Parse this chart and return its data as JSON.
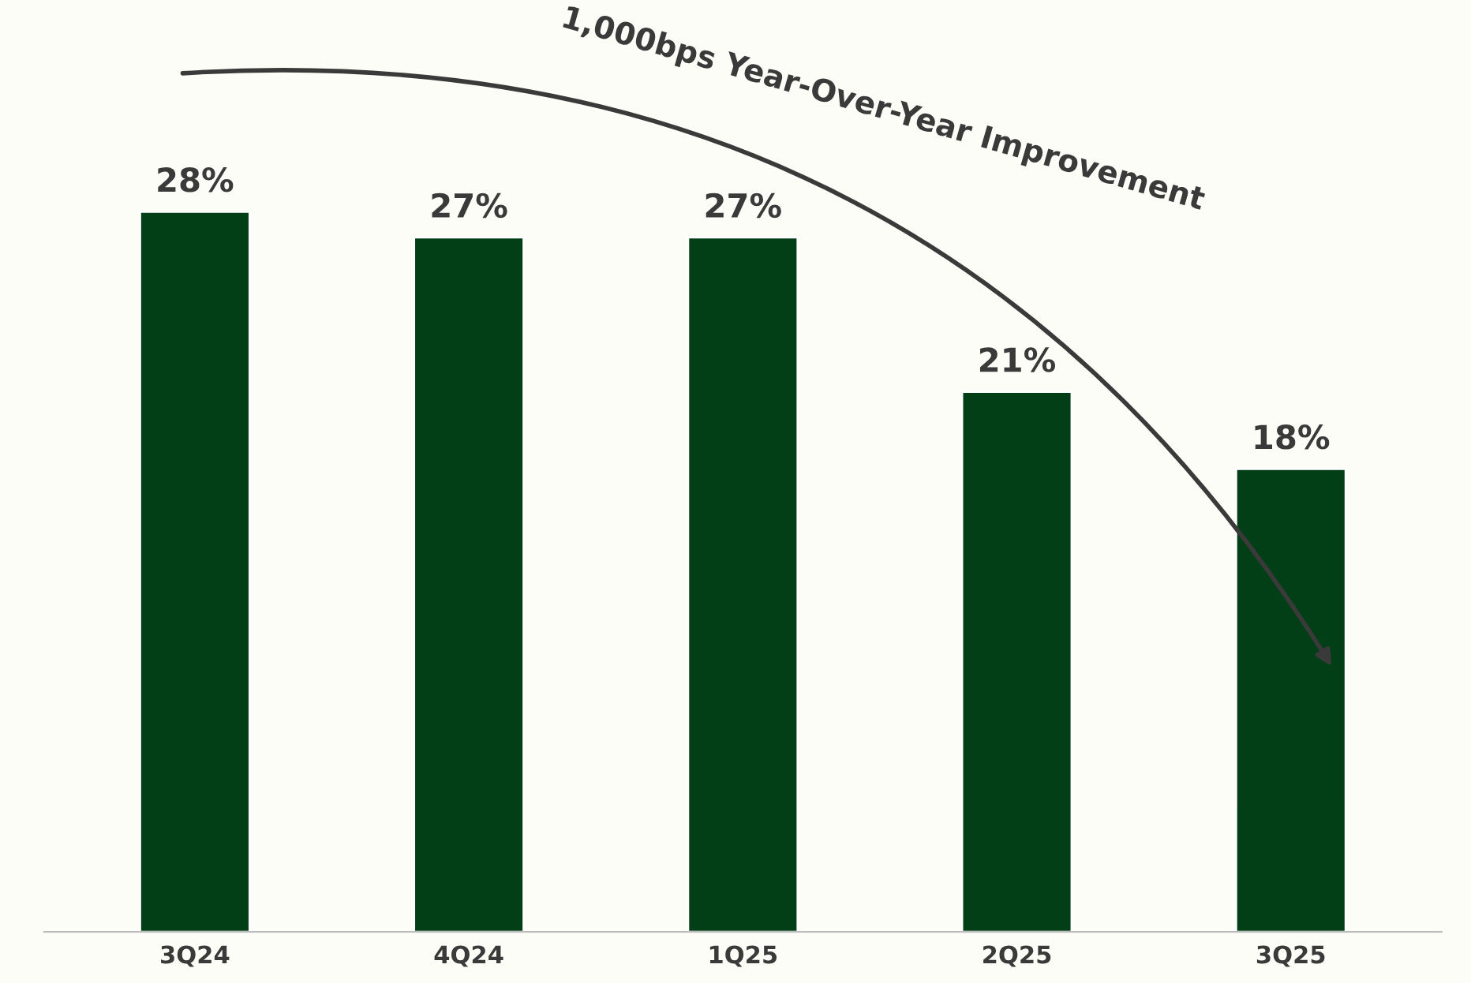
{
  "chart_data": {
    "type": "bar",
    "categories": [
      "3Q24",
      "4Q24",
      "1Q25",
      "2Q25",
      "3Q25"
    ],
    "values": [
      28,
      27,
      27,
      21,
      18
    ],
    "value_labels": [
      "28%",
      "27%",
      "27%",
      "21%",
      "18%"
    ],
    "color": "#023f17",
    "annotations": [
      "1,000bps Year-Over-Year Improvement"
    ],
    "grid": false,
    "legend": false
  }
}
